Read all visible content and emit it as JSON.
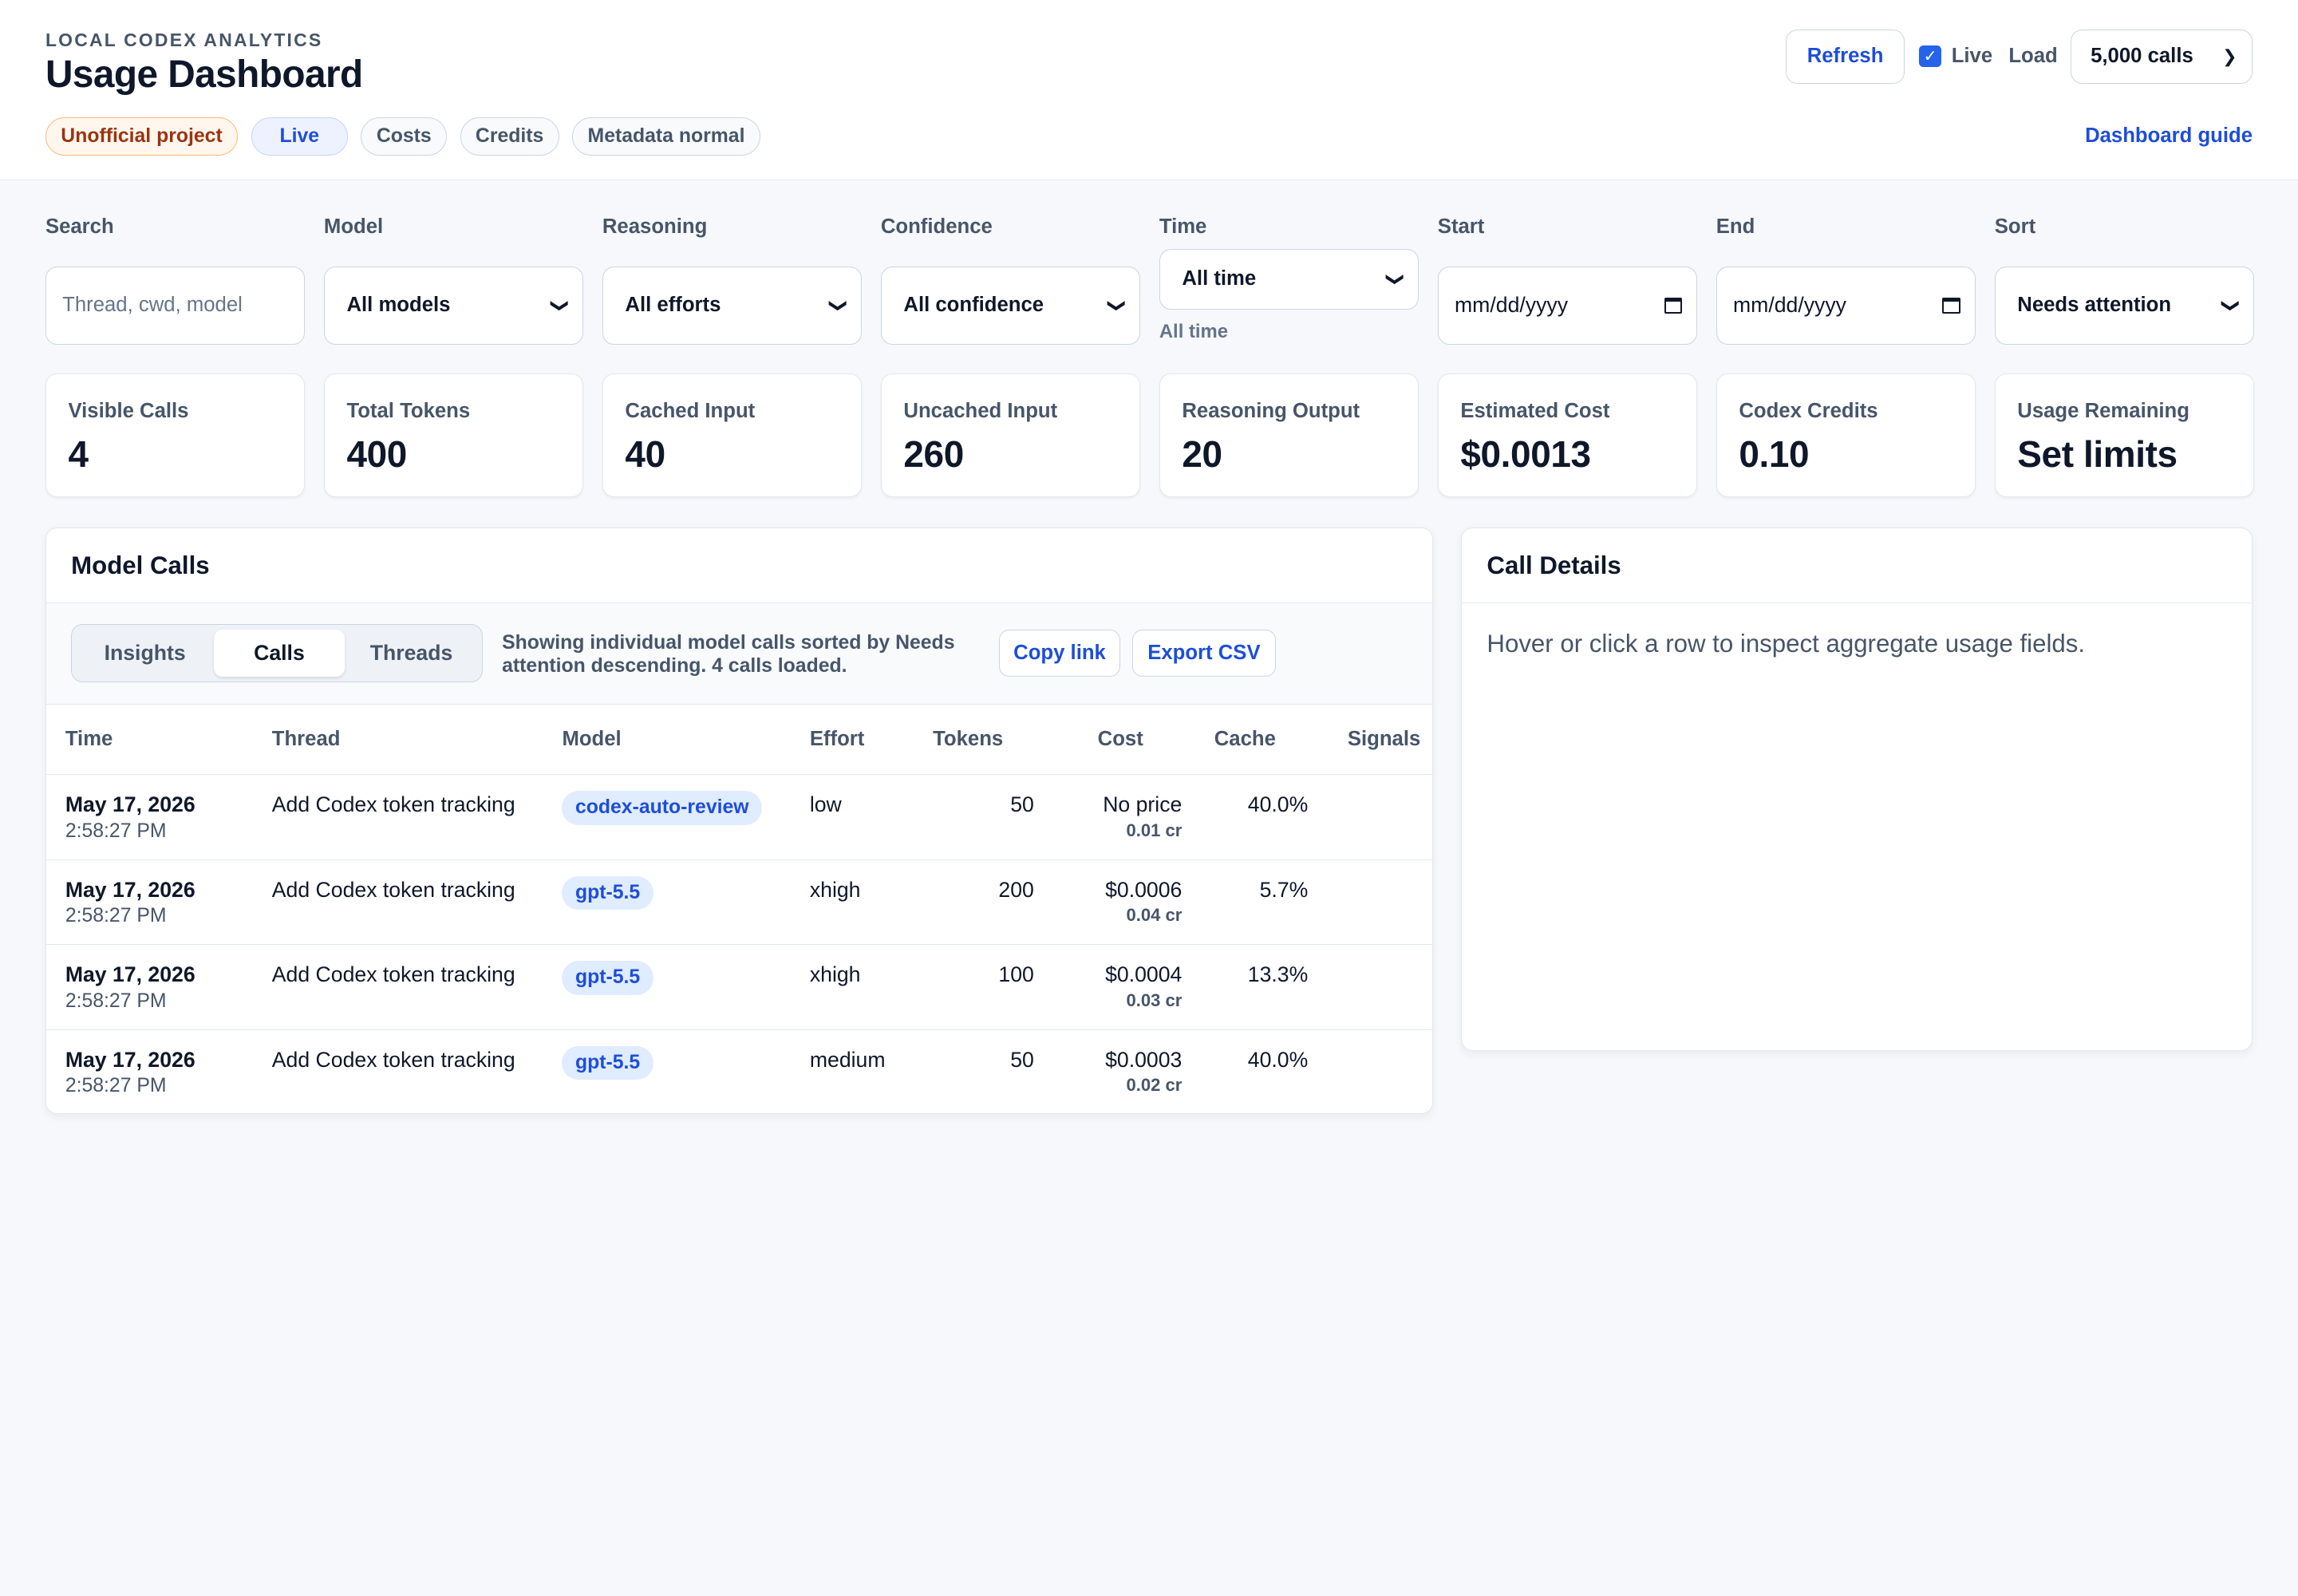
{
  "header": {
    "eyebrow": "LOCAL CODEX ANALYTICS",
    "title": "Usage Dashboard",
    "pills": [
      "Unofficial project",
      "Live",
      "Costs",
      "Credits",
      "Metadata normal"
    ],
    "refresh_label": "Refresh",
    "live_label": "Live",
    "live_checked": true,
    "load_label": "Load",
    "load_value": "5,000 calls",
    "guide_label": "Dashboard guide"
  },
  "filters": {
    "search": {
      "label": "Search",
      "placeholder": "Thread, cwd, model"
    },
    "model": {
      "label": "Model",
      "value": "All models"
    },
    "reasoning": {
      "label": "Reasoning",
      "value": "All efforts"
    },
    "confidence": {
      "label": "Confidence",
      "value": "All confidence"
    },
    "time": {
      "label": "Time",
      "value": "All time",
      "hint": "All time"
    },
    "start": {
      "label": "Start",
      "value": "mm/dd/yyyy"
    },
    "end": {
      "label": "End",
      "value": "mm/dd/yyyy"
    },
    "sort": {
      "label": "Sort",
      "value": "Needs attention"
    }
  },
  "metrics": [
    {
      "label": "Visible Calls",
      "value": "4"
    },
    {
      "label": "Total Tokens",
      "value": "400"
    },
    {
      "label": "Cached Input",
      "value": "40"
    },
    {
      "label": "Uncached Input",
      "value": "260"
    },
    {
      "label": "Reasoning Output",
      "value": "20"
    },
    {
      "label": "Estimated Cost",
      "value": "$0.0013"
    },
    {
      "label": "Codex Credits",
      "value": "0.10"
    },
    {
      "label": "Usage Remaining",
      "value": "Set limits"
    }
  ],
  "calls_panel": {
    "title": "Model Calls",
    "tabs": [
      "Insights",
      "Calls",
      "Threads"
    ],
    "active_tab": "Calls",
    "summary": "Showing individual model calls sorted by Needs attention descending. 4 calls loaded.",
    "copy_link_label": "Copy link",
    "export_label": "Export CSV",
    "columns": [
      "Time",
      "Thread",
      "Model",
      "Effort",
      "Tokens",
      "Cost",
      "Cache",
      "Signals"
    ],
    "rows": [
      {
        "date": "May 17, 2026",
        "time": "2:58:27 PM",
        "thread": "Add Codex token tracking",
        "model": "codex-auto-review",
        "effort": "low",
        "tokens": "50",
        "cost": "No price",
        "credits": "0.01 cr",
        "cache": "40.0%",
        "signals": ""
      },
      {
        "date": "May 17, 2026",
        "time": "2:58:27 PM",
        "thread": "Add Codex token tracking",
        "model": "gpt-5.5",
        "effort": "xhigh",
        "tokens": "200",
        "cost": "$0.0006",
        "credits": "0.04 cr",
        "cache": "5.7%",
        "signals": ""
      },
      {
        "date": "May 17, 2026",
        "time": "2:58:27 PM",
        "thread": "Add Codex token tracking",
        "model": "gpt-5.5",
        "effort": "xhigh",
        "tokens": "100",
        "cost": "$0.0004",
        "credits": "0.03 cr",
        "cache": "13.3%",
        "signals": ""
      },
      {
        "date": "May 17, 2026",
        "time": "2:58:27 PM",
        "thread": "Add Codex token tracking",
        "model": "gpt-5.5",
        "effort": "medium",
        "tokens": "50",
        "cost": "$0.0003",
        "credits": "0.02 cr",
        "cache": "40.0%",
        "signals": ""
      }
    ]
  },
  "details_panel": {
    "title": "Call Details",
    "empty_text": "Hover or click a row to inspect aggregate usage fields."
  },
  "colors": {
    "accent": "#1d4ed8",
    "checkbox": "#2563eb",
    "warn_text": "#9a3412",
    "chip_bg": "#e0ecff",
    "page_bg": "#f6f8fb"
  }
}
